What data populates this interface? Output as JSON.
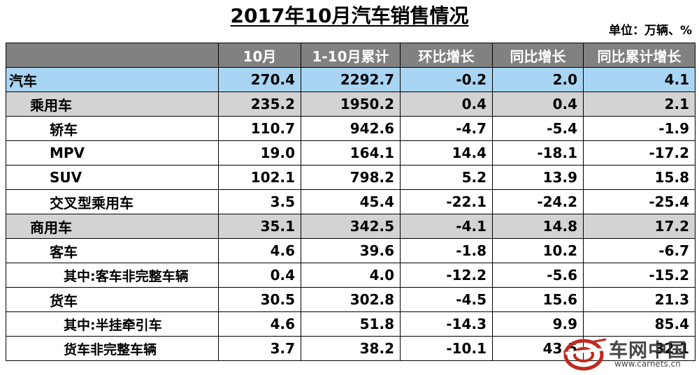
{
  "title": "2017年10月汽车销售情况",
  "unit": "单位：万辆、%",
  "headers": [
    "",
    "10月",
    "1-10月累计",
    "环比增长",
    "同比增长",
    "同比累计增长"
  ],
  "rows": [
    {
      "name": "汽车",
      "oct": "270.4",
      "ytd": "2292.7",
      "mom": "-0.2",
      "yoy": "2.0",
      "ytd_yoy": "4.1"
    },
    {
      "name": "乘用车",
      "oct": "235.2",
      "ytd": "1950.2",
      "mom": "0.4",
      "yoy": "0.4",
      "ytd_yoy": "2.1"
    },
    {
      "name": "轿车",
      "oct": "110.7",
      "ytd": "942.6",
      "mom": "-4.7",
      "yoy": "-5.4",
      "ytd_yoy": "-1.9"
    },
    {
      "name": "MPV",
      "oct": "19.0",
      "ytd": "164.1",
      "mom": "14.4",
      "yoy": "-18.1",
      "ytd_yoy": "-17.2"
    },
    {
      "name": "SUV",
      "oct": "102.1",
      "ytd": "798.2",
      "mom": "5.2",
      "yoy": "13.9",
      "ytd_yoy": "15.8"
    },
    {
      "name": "交叉型乘用车",
      "oct": "3.5",
      "ytd": "45.4",
      "mom": "-22.1",
      "yoy": "-24.2",
      "ytd_yoy": "-25.4"
    },
    {
      "name": "商用车",
      "oct": "35.1",
      "ytd": "342.5",
      "mom": "-4.1",
      "yoy": "14.8",
      "ytd_yoy": "17.2"
    },
    {
      "name": "客车",
      "oct": "4.6",
      "ytd": "39.6",
      "mom": "-1.8",
      "yoy": "10.2",
      "ytd_yoy": "-6.7"
    },
    {
      "name": "其中:客车非完整车辆",
      "oct": "0.4",
      "ytd": "4.0",
      "mom": "-12.2",
      "yoy": "-5.6",
      "ytd_yoy": "-15.2"
    },
    {
      "name": "货车",
      "oct": "30.5",
      "ytd": "302.8",
      "mom": "-4.5",
      "yoy": "15.6",
      "ytd_yoy": "21.3"
    },
    {
      "name": "其中:半挂牵引车",
      "oct": "4.6",
      "ytd": "51.8",
      "mom": "-14.3",
      "yoy": "9.9",
      "ytd_yoy": "85.4"
    },
    {
      "name": "货车非完整车辆",
      "oct": "3.7",
      "ytd": "38.2",
      "mom": "-10.1",
      "yoy": "43.5",
      "ytd_yoy": "32.1"
    }
  ],
  "watermark": {
    "text": "车网中国",
    "url": "www.carnets.cn"
  },
  "colors": {
    "header_bg": "#818181",
    "total_row_bg": "#a8d5f3",
    "group_row_bg": "#d3d3d3"
  }
}
